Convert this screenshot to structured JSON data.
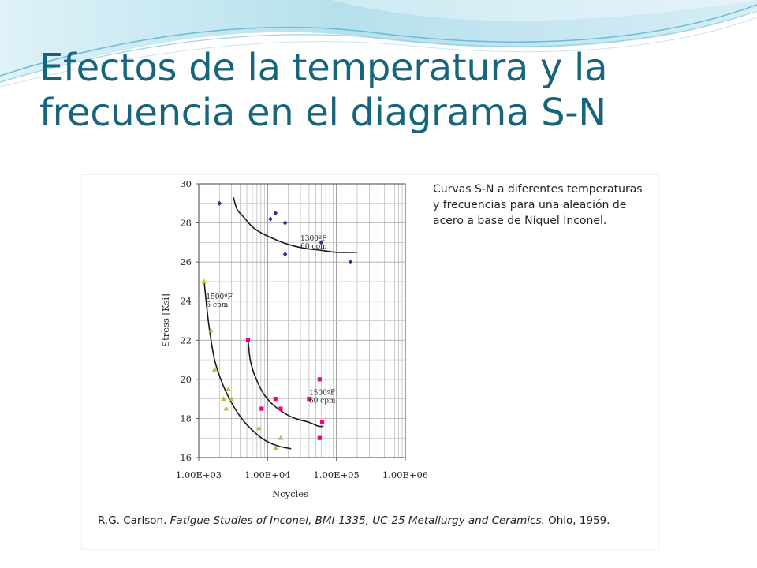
{
  "slide": {
    "title": "Efectos de la temperatura y la frecuencia en el diagrama S-N"
  },
  "caption": "Curvas S-N  a diferentes temperaturas y frecuencias  para una aleación de acero a base de Níquel Inconel.",
  "reference": {
    "author": "R.G. Carlson. ",
    "work": "Fatigue Studies of Inconel, BMI-1335, UC-25 Metallurgy and Ceramics.",
    "place_year": " Ohio, 1959."
  },
  "colors": {
    "title": "#17657c",
    "series_1300F": "#2e3192",
    "series_1500F_60": "#ec008c",
    "series_1500F_6": "#a6c93a",
    "curve": "#1a1a1a"
  },
  "chart_data": {
    "type": "scatter",
    "xlabel": "Ncycles",
    "ylabel": "Stress [Ksi]",
    "x_scale": "log",
    "xlim": [
      1000,
      1000000
    ],
    "ylim": [
      16,
      30
    ],
    "x_ticks": [
      "1.00E+03",
      "1.00E+04",
      "1.00E+05",
      "1.00E+06"
    ],
    "y_ticks": [
      "16",
      "18",
      "20",
      "22",
      "24",
      "26",
      "28",
      "30"
    ],
    "grid": true,
    "legend": "none",
    "series": [
      {
        "name": "1300ºF 60 cpm",
        "label_lines": [
          "1300ºF",
          "60 cpm"
        ],
        "marker": "diamond",
        "color": "#2e3192",
        "label_at": [
          30000,
          27.1
        ],
        "points": [
          [
            2000,
            29.0
          ],
          [
            11000,
            28.2
          ],
          [
            13000,
            28.5
          ],
          [
            18000,
            28.0
          ],
          [
            18000,
            26.4
          ],
          [
            60000,
            27.0
          ],
          [
            160000,
            26.0
          ]
        ],
        "curve": [
          [
            3200,
            29.3
          ],
          [
            3600,
            28.7
          ],
          [
            4500,
            28.3
          ],
          [
            6000,
            27.8
          ],
          [
            8000,
            27.5
          ],
          [
            12000,
            27.2
          ],
          [
            20000,
            26.9
          ],
          [
            35000,
            26.7
          ],
          [
            60000,
            26.6
          ],
          [
            100000,
            26.5
          ],
          [
            200000,
            26.5
          ]
        ]
      },
      {
        "name": "1500ºF 60 cpm",
        "label_lines": [
          "1500ºF",
          "60 cpm"
        ],
        "marker": "square",
        "color": "#ec008c",
        "label_at": [
          40000,
          19.2
        ],
        "points": [
          [
            5200,
            22.0
          ],
          [
            8200,
            18.5
          ],
          [
            13000,
            19.0
          ],
          [
            15500,
            18.5
          ],
          [
            40000,
            19.0
          ],
          [
            57000,
            20.0
          ],
          [
            57000,
            17.0
          ],
          [
            62000,
            17.8
          ]
        ],
        "curve": [
          [
            5200,
            22.0
          ],
          [
            5600,
            21.0
          ],
          [
            6200,
            20.4
          ],
          [
            7500,
            19.7
          ],
          [
            9000,
            19.2
          ],
          [
            12000,
            18.7
          ],
          [
            17000,
            18.3
          ],
          [
            25000,
            18.0
          ],
          [
            40000,
            17.8
          ],
          [
            55000,
            17.6
          ],
          [
            65000,
            17.6
          ]
        ]
      },
      {
        "name": "1500ºF 6 cpm",
        "label_lines": [
          "1500ºF",
          "6 cpm"
        ],
        "marker": "triangle",
        "color": "#a6c93a",
        "label_at": [
          1280,
          24.1
        ],
        "points": [
          [
            1200,
            25.0
          ],
          [
            1500,
            22.5
          ],
          [
            1700,
            20.5
          ],
          [
            2300,
            19.0
          ],
          [
            2500,
            18.5
          ],
          [
            2700,
            19.5
          ],
          [
            3000,
            19.0
          ],
          [
            7500,
            17.5
          ],
          [
            13000,
            16.5
          ],
          [
            15500,
            17.0
          ]
        ],
        "curve": [
          [
            1200,
            25.0
          ],
          [
            1400,
            22.8
          ],
          [
            1700,
            21.0
          ],
          [
            2200,
            19.8
          ],
          [
            3000,
            18.8
          ],
          [
            4200,
            18.0
          ],
          [
            6000,
            17.4
          ],
          [
            9000,
            16.9
          ],
          [
            14000,
            16.6
          ],
          [
            22000,
            16.45
          ]
        ]
      }
    ]
  }
}
